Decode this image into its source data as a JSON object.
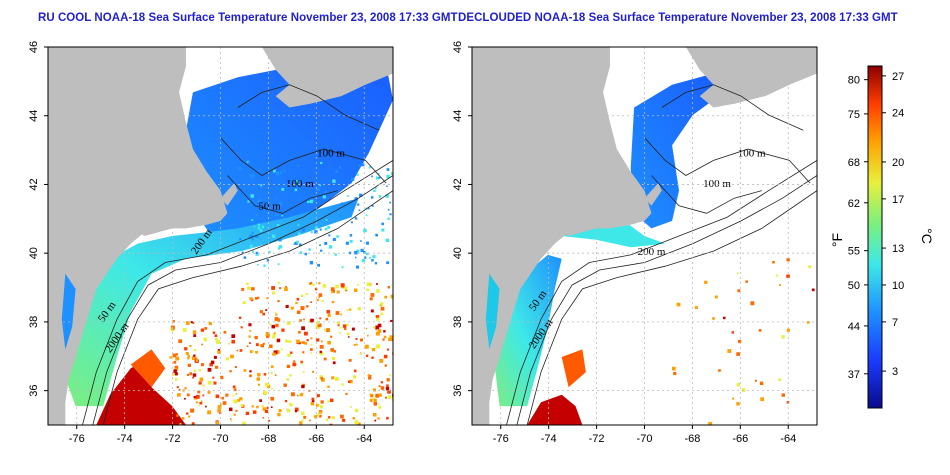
{
  "left_panel": {
    "title": "RU COOL NOAA-18 Sea Surface Temperature November 23, 2008 17:33 GMT",
    "mode": "cloudy",
    "contour_labels": [
      "100 m",
      "100 m",
      "50 m",
      "200 m",
      "50 m",
      "2000 m"
    ]
  },
  "right_panel": {
    "title": "DECLOUDED NOAA-18 Sea Surface Temperature November 23, 2008 17:33 GMT",
    "mode": "declouded",
    "contour_labels": [
      "100 m",
      "100 m",
      "200 m",
      "50 m",
      "2000 m"
    ]
  },
  "axes": {
    "x_ticks": [
      "-76",
      "-74",
      "-72",
      "-70",
      "-68",
      "-66",
      "-64"
    ],
    "y_ticks": [
      "46",
      "44",
      "42",
      "40",
      "38",
      "36"
    ],
    "xlim": [
      -77.2,
      -62.8
    ],
    "ylim": [
      35,
      46
    ]
  },
  "colorbar": {
    "f_unit": "°F",
    "c_unit": "°C",
    "f_ticks": [
      "80",
      "75",
      "68",
      "62",
      "55",
      "50",
      "44",
      "37"
    ],
    "c_ticks": [
      "27",
      "24",
      "20",
      "17",
      "13",
      "10",
      "7",
      "3"
    ],
    "colors": [
      "#0a0a8c",
      "#1a3cff",
      "#1e90ff",
      "#3ee8e8",
      "#7cf07c",
      "#e8f03c",
      "#ffa000",
      "#ff3c00",
      "#8c0000"
    ]
  },
  "colors": {
    "land": "#bebebe",
    "title": "#1f1fd0",
    "grid": "#bbbbbb"
  }
}
